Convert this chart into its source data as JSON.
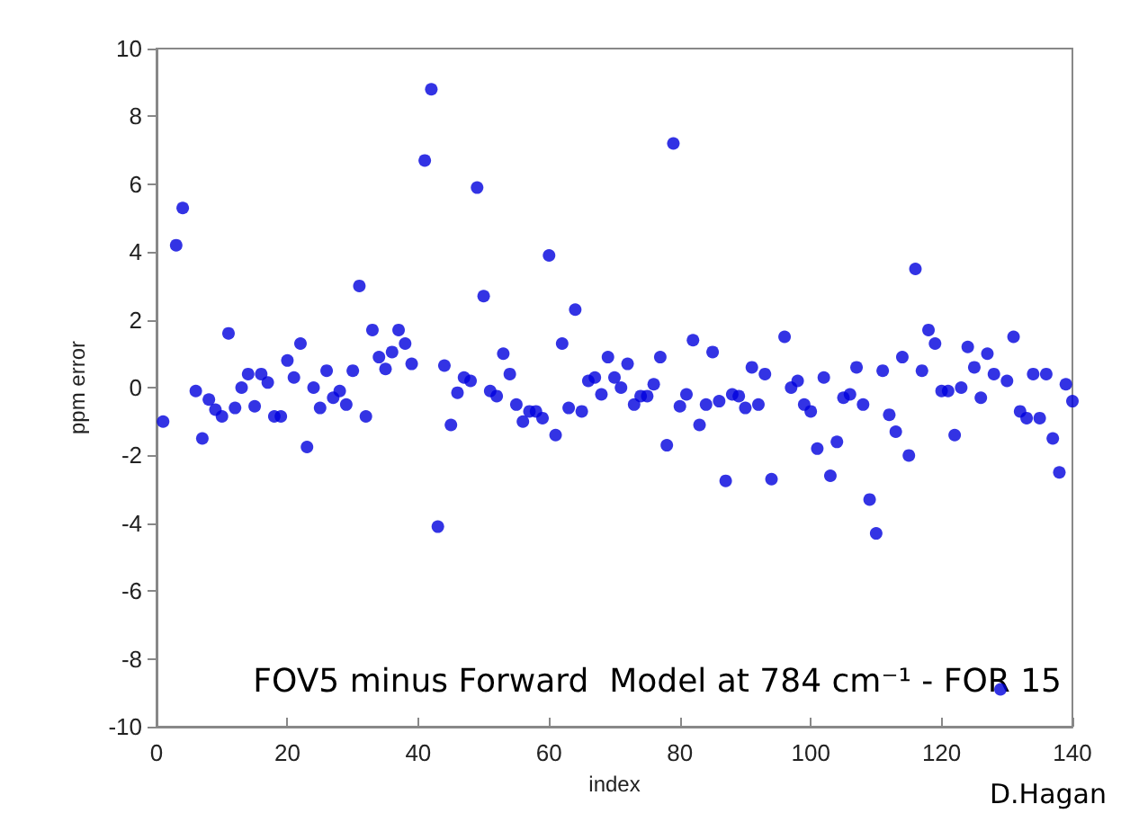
{
  "chart_data": {
    "type": "scatter",
    "xlabel": "index",
    "ylabel": "ppm error",
    "annotations": [
      "FOV5 minus Forward  Model at 784 cm⁻¹ - FOR 15",
      "D.Hagan"
    ],
    "xlim": [
      0,
      140
    ],
    "xticks": [
      0,
      20,
      40,
      60,
      80,
      100,
      120,
      140
    ],
    "ylim": [
      -10,
      10
    ],
    "yticks": [
      -10,
      -8,
      -6,
      -4,
      -2,
      0,
      2,
      4,
      6,
      8,
      10
    ],
    "marker": "circle",
    "series": [
      {
        "color": "#0000dd",
        "x": [
          1,
          3,
          4,
          6,
          7,
          8,
          9,
          10,
          11,
          12,
          13,
          14,
          15,
          16,
          17,
          18,
          19,
          20,
          21,
          22,
          23,
          24,
          25,
          26,
          27,
          28,
          29,
          30,
          31,
          32,
          33,
          34,
          35,
          36,
          37,
          38,
          39,
          41,
          42,
          43,
          44,
          45,
          46,
          47,
          48,
          49,
          50,
          51,
          52,
          53,
          54,
          55,
          56,
          57,
          58,
          59,
          60,
          61,
          62,
          63,
          64,
          65,
          66,
          67,
          68,
          69,
          70,
          71,
          72,
          73,
          74,
          75,
          76,
          77,
          78,
          79,
          80,
          81,
          82,
          83,
          84,
          85,
          86,
          87,
          88,
          89,
          90,
          91,
          92,
          93,
          94,
          96,
          97,
          98,
          99,
          100,
          101,
          102,
          103,
          104,
          105,
          106,
          107,
          108,
          109,
          110,
          111,
          112,
          113,
          114,
          115,
          116,
          117,
          118,
          119,
          120,
          121,
          122,
          123,
          124,
          125,
          126,
          127,
          128,
          129,
          130,
          131,
          132,
          133,
          134,
          135,
          136,
          137,
          138,
          139,
          140
        ],
        "values": [
          -1.0,
          4.2,
          5.3,
          -0.1,
          -1.5,
          -0.35,
          -0.65,
          -0.85,
          1.6,
          -0.6,
          0.0,
          0.4,
          -0.55,
          0.4,
          0.15,
          -0.85,
          -0.85,
          0.8,
          0.3,
          1.3,
          -1.75,
          0.0,
          -0.6,
          0.5,
          -0.3,
          -0.1,
          -0.5,
          0.5,
          3.0,
          -0.85,
          1.7,
          0.9,
          0.55,
          1.05,
          1.7,
          1.3,
          0.7,
          6.7,
          8.8,
          -4.1,
          0.65,
          -1.1,
          -0.15,
          0.3,
          0.2,
          5.9,
          2.7,
          -0.1,
          -0.25,
          1.0,
          0.4,
          -0.5,
          -1.0,
          -0.7,
          -0.7,
          -0.9,
          3.9,
          -1.4,
          1.3,
          -0.6,
          2.3,
          -0.7,
          0.2,
          0.3,
          -0.2,
          0.9,
          0.3,
          0.0,
          0.7,
          -0.5,
          -0.25,
          -0.25,
          0.1,
          0.9,
          -1.7,
          7.2,
          -0.55,
          -0.2,
          1.4,
          -1.1,
          -0.5,
          1.05,
          -0.4,
          -2.75,
          -0.2,
          -0.25,
          -0.6,
          0.6,
          -0.5,
          0.4,
          -2.7,
          1.5,
          0.0,
          0.2,
          -0.5,
          -0.7,
          -1.8,
          0.3,
          -2.6,
          -1.6,
          -0.3,
          -0.2,
          0.6,
          -0.5,
          -3.3,
          -4.3,
          0.5,
          -0.8,
          -1.3,
          0.9,
          -2.0,
          3.5,
          0.5,
          1.7,
          1.3,
          -0.1,
          -0.1,
          -1.4,
          0.0,
          1.2,
          0.6,
          -0.3,
          1.0,
          0.4,
          -8.9,
          0.2,
          1.5,
          -0.7,
          -0.9,
          0.4,
          -0.9,
          0.4,
          -1.5,
          -2.5,
          0.1,
          -0.4
        ]
      }
    ]
  }
}
